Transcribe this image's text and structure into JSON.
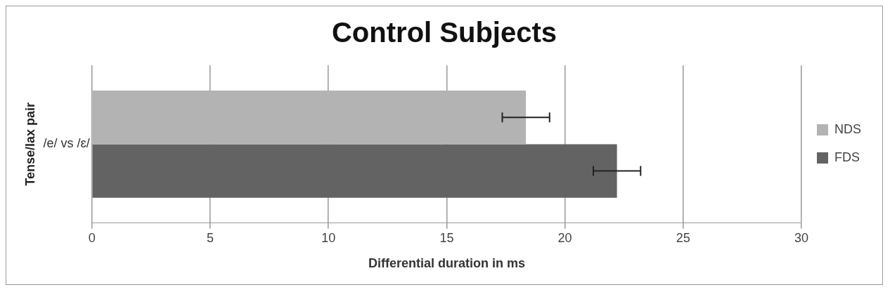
{
  "chart_data": {
    "type": "bar",
    "orientation": "horizontal",
    "title": "Control Subjects",
    "xlabel": "Differential duration in ms",
    "ylabel": "Tense/lax pair",
    "categories": [
      "/e/ vs /ɛ/"
    ],
    "series": [
      {
        "name": "NDS",
        "color": "#b3b3b3",
        "values": [
          18.35
        ],
        "errors": [
          1.0
        ]
      },
      {
        "name": "FDS",
        "color": "#636363",
        "values": [
          22.2
        ],
        "errors": [
          1.0
        ]
      }
    ],
    "xlim": [
      0,
      30
    ],
    "xticks": [
      0,
      5,
      10,
      15,
      20,
      25,
      30
    ],
    "grid": "x",
    "legend": "right"
  }
}
